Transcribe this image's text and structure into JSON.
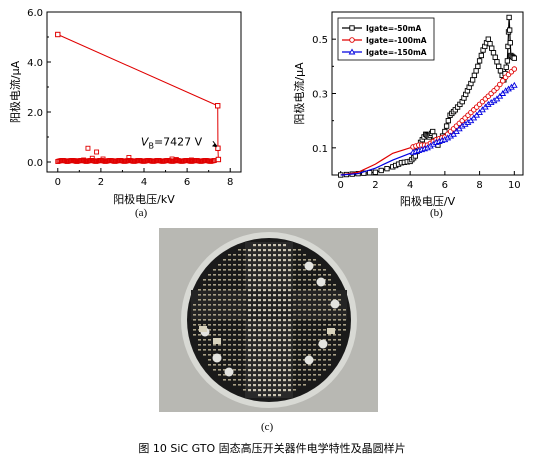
{
  "figure": {
    "caption": "图 10   SiC GTO 固态高压开关器件电学特性及晶圆样片",
    "labels": {
      "a": "(a)",
      "b": "(b)",
      "c": "(c)"
    }
  },
  "chart_data": [
    {
      "type": "scatter",
      "xlabel": "阳极电压/kV",
      "ylabel": "阳极电流/μA",
      "xlim": [
        -0.5,
        8.5
      ],
      "ylim": [
        -0.4,
        6.0
      ],
      "xticks": [
        "0",
        "2",
        "4",
        "6",
        "8"
      ],
      "yticks": [
        "0.0",
        "2.0",
        "4.0",
        "6.0"
      ],
      "annotation": {
        "text_prefix": "V",
        "text_sub": "B",
        "text_suffix": "=7427 V",
        "x": 7.43,
        "y": 0.55
      },
      "color": "#e00000",
      "series": [
        {
          "x": [
            0.0,
            0.5,
            1.0,
            1.5,
            2.0,
            2.5,
            3.0,
            3.5,
            4.0,
            4.5,
            5.0,
            5.5,
            6.0,
            6.5,
            7.0,
            7.3
          ],
          "y": [
            0.0,
            0.02,
            0.03,
            0.03,
            0.04,
            0.02,
            0.03,
            0.03,
            0.04,
            0.03,
            0.04,
            0.03,
            0.04,
            0.05,
            0.06,
            0.1
          ]
        },
        {
          "x": [
            0.8,
            1.2,
            1.4,
            1.6,
            1.8,
            2.1,
            3.3,
            5.3,
            5.5,
            6.2
          ],
          "y": [
            0.05,
            0.08,
            0.55,
            0.15,
            0.4,
            0.12,
            0.18,
            0.12,
            0.1,
            0.08
          ]
        },
        {
          "x": [
            0.0,
            7.42,
            7.43,
            7.45
          ],
          "y": [
            5.1,
            2.25,
            0.55,
            0.1
          ]
        }
      ]
    },
    {
      "type": "line",
      "xlabel": "阳极电压/V",
      "ylabel": "阳极电流/μA",
      "xlim": [
        -0.5,
        10.5
      ],
      "ylim": [
        0,
        0.6
      ],
      "xticks": [
        "0",
        "2",
        "4",
        "6",
        "8",
        "10"
      ],
      "yticks": [
        "0.1",
        "0.3",
        "0.5"
      ],
      "legend_position": "top-left",
      "series": [
        {
          "name": "Igate=-50mA",
          "color": "#000000",
          "marker": "square",
          "x": [
            0,
            1,
            2,
            3,
            3.5,
            4,
            4.3,
            4.6,
            4.9,
            5.1,
            5.3,
            5.6,
            6.0,
            6.3,
            6.6,
            7.0,
            7.3,
            7.6,
            7.9,
            8.2,
            8.5,
            8.8,
            9.1,
            9.4,
            9.6,
            9.7,
            9.8,
            10
          ],
          "y": [
            0,
            0.005,
            0.01,
            0.03,
            0.045,
            0.05,
            0.07,
            0.12,
            0.15,
            0.14,
            0.16,
            0.11,
            0.16,
            0.22,
            0.24,
            0.27,
            0.31,
            0.35,
            0.4,
            0.46,
            0.5,
            0.45,
            0.4,
            0.35,
            0.42,
            0.58,
            0.44,
            0.43
          ]
        },
        {
          "name": "Igate=-100mA",
          "color": "#e00000",
          "marker": "circle",
          "x": [
            0,
            1,
            2,
            3,
            4,
            4.5,
            5,
            5.5,
            6,
            6.5,
            7,
            7.5,
            8,
            8.5,
            9,
            9.5,
            10
          ],
          "y": [
            0,
            0.01,
            0.04,
            0.08,
            0.1,
            0.11,
            0.11,
            0.13,
            0.14,
            0.17,
            0.2,
            0.23,
            0.26,
            0.29,
            0.32,
            0.36,
            0.39
          ]
        },
        {
          "name": "Igate=-150mA",
          "color": "#0000e0",
          "marker": "triangle",
          "x": [
            0,
            1,
            2,
            3,
            4,
            4.5,
            5,
            5.5,
            6,
            6.5,
            7,
            7.5,
            8,
            8.5,
            9,
            9.5,
            10
          ],
          "y": [
            0,
            0.005,
            0.025,
            0.055,
            0.08,
            0.09,
            0.1,
            0.12,
            0.13,
            0.15,
            0.18,
            0.2,
            0.23,
            0.26,
            0.28,
            0.31,
            0.33
          ]
        }
      ]
    }
  ]
}
